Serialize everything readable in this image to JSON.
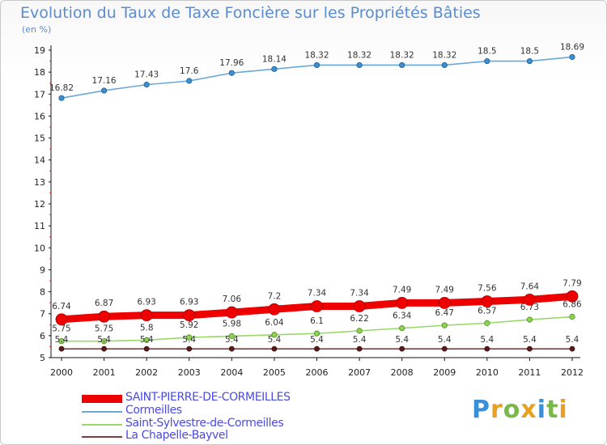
{
  "header": {
    "title": "Evolution du Taux de Taxe Foncière sur les Propriétés Bâties",
    "unit": "(en %)"
  },
  "logo": {
    "letters": [
      "P",
      "r",
      "o",
      "x",
      "i",
      "t",
      "i"
    ],
    "colors": [
      "#3a8fd6",
      "#e8a020",
      "#7ab84a",
      "#e8a020",
      "#3a8fd6",
      "#7ab84a",
      "#e8a020"
    ]
  },
  "chart_data": {
    "type": "line",
    "x": [
      "2000",
      "2001",
      "2002",
      "2003",
      "2004",
      "2005",
      "2006",
      "2007",
      "2008",
      "2009",
      "2010",
      "2011",
      "2012"
    ],
    "ylim": [
      5,
      19
    ],
    "yticks": [
      "5",
      "6",
      "7",
      "8",
      "9",
      "10",
      "11",
      "12",
      "13",
      "14",
      "15",
      "16",
      "17",
      "18",
      "19"
    ],
    "grid": false,
    "legend_position": "bottom-left",
    "series": [
      {
        "name": "SAINT-PIERRE-DE-CORMEILLES",
        "color": "#ee0000",
        "values": [
          6.74,
          6.87,
          6.93,
          6.93,
          7.06,
          7.2,
          7.34,
          7.34,
          7.49,
          7.49,
          7.56,
          7.64,
          7.79
        ],
        "labels": [
          "6.74",
          "6.87",
          "6.93",
          "6.93",
          "7.06",
          "7.2",
          "7.34",
          "7.34",
          "7.49",
          "7.49",
          "7.56",
          "7.64",
          "7.79"
        ]
      },
      {
        "name": "Cormeilles",
        "color": "#6aa8d8",
        "values": [
          16.82,
          17.16,
          17.43,
          17.6,
          17.96,
          18.14,
          18.32,
          18.32,
          18.32,
          18.32,
          18.5,
          18.5,
          18.69
        ],
        "labels": [
          "16.82",
          "17.16",
          "17.43",
          "17.6",
          "17.96",
          "18.14",
          "18.32",
          "18.32",
          "18.32",
          "18.32",
          "18.5",
          "18.5",
          "18.69"
        ]
      },
      {
        "name": "Saint-Sylvestre-de-Cormeilles",
        "color": "#9ad86a",
        "values": [
          5.75,
          5.75,
          5.8,
          5.92,
          5.98,
          6.04,
          6.1,
          6.22,
          6.34,
          6.47,
          6.57,
          6.73,
          6.86
        ],
        "labels": [
          "5.75",
          "5.75",
          "5.8",
          "5.92",
          "5.98",
          "6.04",
          "6.1",
          "6.22",
          "6.34",
          "6.47",
          "6.57",
          "6.73",
          "6.86"
        ]
      },
      {
        "name": "La Chapelle-Bayvel",
        "color": "#7a4040",
        "values": [
          5.4,
          5.4,
          5.4,
          5.4,
          5.4,
          5.4,
          5.4,
          5.4,
          5.4,
          5.4,
          5.4,
          5.4,
          5.4
        ],
        "labels": [
          "5.4",
          "5.4",
          "5.4",
          "5.4",
          "5.4",
          "5.4",
          "5.4",
          "5.4",
          "5.4",
          "5.4",
          "5.4",
          "5.4",
          "5.4"
        ]
      }
    ]
  }
}
